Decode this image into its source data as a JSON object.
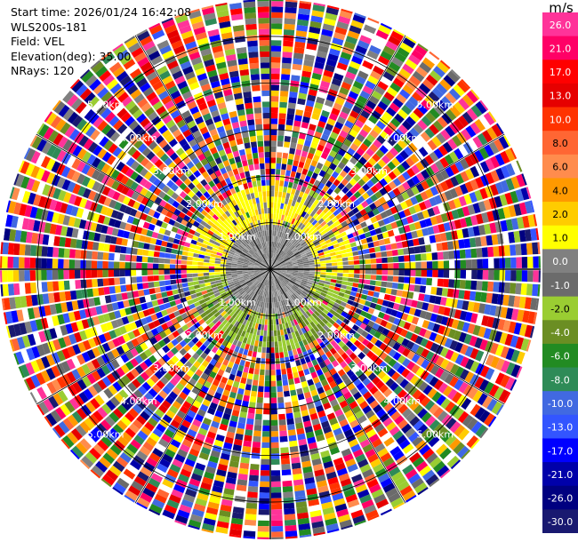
{
  "header": {
    "start_time": "Start time: 2026/01/24 16:42:08",
    "instrument": "WLS200s-181",
    "field": "Field: VEL",
    "elevation": "Elevation(deg): 35.00",
    "nrays": "NRays: 120"
  },
  "colorbar": {
    "unit": "m/s",
    "ticks": [
      "26.0",
      "21.0",
      "17.0",
      "13.0",
      "10.0",
      "8.0",
      "6.0",
      "4.0",
      "2.0",
      "1.0",
      "0.0",
      "-1.0",
      "-2.0",
      "-4.0",
      "-6.0",
      "-8.0",
      "-10.0",
      "-13.0",
      "-17.0",
      "-21.0",
      "-26.0",
      "-30.0"
    ],
    "colors": [
      "#ff3399",
      "#ff0066",
      "#ff0000",
      "#e60000",
      "#ff3300",
      "#ff6633",
      "#ff8c4d",
      "#ff9900",
      "#ffcc00",
      "#ffff00",
      "#808080",
      "#6b6b6b",
      "#9acd32",
      "#6b8e23",
      "#228b22",
      "#2e8b57",
      "#4169e1",
      "#3355ff",
      "#0000ff",
      "#0000aa",
      "#000080",
      "#191970"
    ]
  },
  "chart_data": {
    "type": "heatmap",
    "projection": "polar (PPI scan)",
    "field": "VEL",
    "units": "m/s",
    "nrays": 120,
    "elevation_deg": 35.0,
    "range_ring_labels": [
      "1.00km",
      "2.00km",
      "3.00km",
      "4.00km",
      "5.00km"
    ],
    "range_rings_km": [
      1,
      2,
      3,
      4,
      5
    ],
    "max_range_km": 5.8,
    "color_scale": [
      -30,
      -26,
      -21,
      -17,
      -13,
      -10,
      -8,
      -6,
      -4,
      -2,
      -1,
      0,
      1,
      2,
      4,
      6,
      8,
      10,
      13,
      17,
      21,
      26
    ],
    "description_zones": [
      {
        "range_km": [
          0,
          0.9
        ],
        "dominant_values": "0.0 to -1.0 (grey)"
      },
      {
        "range_km": [
          0.9,
          1.7
        ],
        "dominant_values": "+1.0 to +2.0 north side, -1.0 to -2.0 south side"
      },
      {
        "range_km": [
          1.7,
          5.8
        ],
        "dominant_values": "noise, all values -30 to 26"
      }
    ]
  }
}
